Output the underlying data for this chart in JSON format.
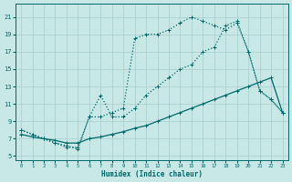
{
  "xlabel": "Humidex (Indice chaleur)",
  "background_color": "#c8e8e8",
  "grid_color": "#a8cccc",
  "line_color": "#006868",
  "xlim": [
    -0.5,
    23.5
  ],
  "ylim": [
    4.5,
    22.5
  ],
  "xticks": [
    0,
    1,
    2,
    3,
    4,
    5,
    6,
    7,
    8,
    9,
    10,
    11,
    12,
    13,
    14,
    15,
    16,
    17,
    18,
    19,
    20,
    21,
    22,
    23
  ],
  "yticks": [
    5,
    7,
    9,
    11,
    13,
    15,
    17,
    19,
    21
  ],
  "s1x": [
    0,
    1,
    2,
    3,
    4,
    5,
    6,
    7,
    8,
    9,
    10,
    11,
    12,
    13,
    14,
    15,
    16,
    17,
    18,
    19,
    20,
    21,
    22,
    23
  ],
  "s1y": [
    8.0,
    7.5,
    7.0,
    6.5,
    6.2,
    5.8,
    9.5,
    9.5,
    10.0,
    10.5,
    18.5,
    19.0,
    19.0,
    19.5,
    20.3,
    21.0,
    20.5,
    20.0,
    19.5,
    20.3,
    17.0,
    12.5,
    11.5,
    10.0
  ],
  "s2x": [
    0,
    1,
    2,
    3,
    4,
    5,
    6,
    7,
    8,
    9,
    10,
    11,
    12,
    13,
    14,
    15,
    16,
    17,
    18,
    19,
    20,
    21,
    22,
    23
  ],
  "s2y": [
    8.0,
    7.5,
    7.0,
    6.5,
    6.0,
    6.0,
    9.5,
    12.0,
    9.5,
    9.5,
    10.5,
    12.0,
    13.0,
    14.0,
    15.0,
    15.5,
    17.0,
    17.5,
    20.0,
    20.5,
    17.0,
    12.5,
    11.5,
    10.0
  ],
  "s3x": [
    0,
    1,
    2,
    3,
    4,
    5,
    6,
    7,
    8,
    9,
    10,
    11,
    12,
    13,
    14,
    15,
    16,
    17,
    18,
    19,
    20,
    21,
    22,
    23
  ],
  "s3y": [
    7.5,
    7.2,
    7.0,
    6.8,
    6.5,
    6.5,
    7.0,
    7.2,
    7.5,
    7.8,
    8.2,
    8.5,
    9.0,
    9.5,
    10.0,
    10.5,
    11.0,
    11.5,
    12.0,
    12.5,
    13.0,
    13.5,
    14.0,
    10.0
  ]
}
